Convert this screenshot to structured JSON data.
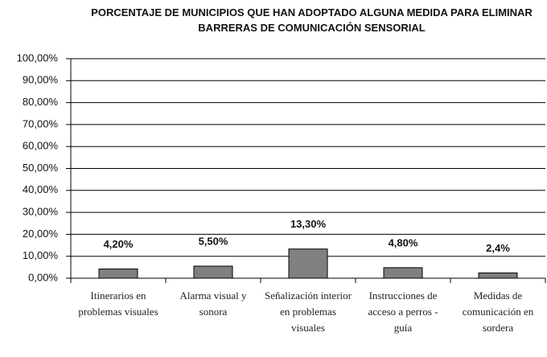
{
  "chart_data": {
    "type": "bar",
    "title": "PORCENTAJE DE MUNICIPIOS QUE HAN ADOPTADO ALGUNA MEDIDA PARA ELIMINAR BARRERAS DE COMUNICACIÓN SENSORIAL",
    "categories": [
      "Itinerarios en problemas visuales",
      "Alarma visual y sonora",
      "Señalización interior en problemas visuales",
      "Instrucciones de acceso a perros - guía",
      "Medidas de comunicación en sordera"
    ],
    "values": [
      4.2,
      5.5,
      13.3,
      4.8,
      2.4
    ],
    "value_labels": [
      "4,20%",
      "5,50%",
      "13,30%",
      "4,80%",
      "2,4%"
    ],
    "color": "#808080",
    "ylim": [
      0,
      100
    ],
    "yticks": [
      {
        "value": 0,
        "label": "0,00%"
      },
      {
        "value": 10,
        "label": "10,00%"
      },
      {
        "value": 20,
        "label": "20,00%"
      },
      {
        "value": 30,
        "label": "30,00%"
      },
      {
        "value": 40,
        "label": "40,00%"
      },
      {
        "value": 50,
        "label": "50,00%"
      },
      {
        "value": 60,
        "label": "60,00%"
      },
      {
        "value": 70,
        "label": "70,00%"
      },
      {
        "value": 80,
        "label": "80,00%"
      },
      {
        "value": 90,
        "label": "90,00%"
      },
      {
        "value": 100,
        "label": "100,00%"
      }
    ],
    "grid": true
  }
}
